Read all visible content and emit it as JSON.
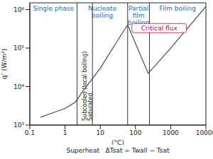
{
  "chart_data": {
    "type": "line",
    "log": true,
    "grid": false,
    "color": "#555555",
    "x": [
      0.2,
      1,
      2,
      3,
      5,
      10,
      30,
      60,
      230,
      1000,
      10000
    ],
    "values": [
      1600,
      2700,
      4000,
      7000,
      13000,
      30000,
      150000,
      400000,
      22000,
      100000,
      1200000
    ],
    "xlim": [
      0.1,
      10000
    ],
    "ylim": [
      1000,
      1500000
    ],
    "xticks": [
      0.1,
      1,
      10,
      100,
      1000,
      10000
    ],
    "yticks": [
      {
        "value": 1000,
        "label": "10³"
      },
      {
        "value": 10000,
        "label": "10⁴"
      },
      {
        "value": 100000,
        "label": "10⁵"
      },
      {
        "value": 1000000,
        "label": "10⁶"
      }
    ],
    "xlabel": "(°C)",
    "ylabel": "q″ (W/m²)",
    "caption": "Superheat   ΔTsat = Twall − Tsat",
    "regions": [
      {
        "label": "Single phase",
        "from": 0.1,
        "to": 2.2
      },
      {
        "label": "Nucleate boiling",
        "from": 2.2,
        "to": 60
      },
      {
        "label": "Partial film boiling",
        "from": 60,
        "to": 250
      },
      {
        "label": "Film boiling",
        "from": 250,
        "to": 10000
      }
    ],
    "vlines": [
      2.2,
      6,
      60,
      250
    ],
    "annotations": [
      {
        "text": "Subcooled (local boiling)",
        "x": 3.5
      },
      {
        "text": "Saturated",
        "x": 5.2
      }
    ],
    "critical": {
      "text": "Critical flux",
      "x": 60,
      "y": 400000
    }
  }
}
